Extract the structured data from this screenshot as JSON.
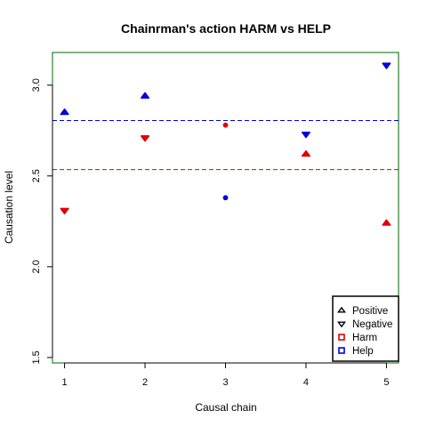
{
  "chart_data": {
    "type": "scatter",
    "title": "Chainrman's action HARM vs HELP",
    "xlabel": "Causal chain",
    "ylabel": "Causation level",
    "xlim": [
      0.85,
      5.15
    ],
    "ylim": [
      1.47,
      3.18
    ],
    "x_ticks": [
      "1",
      "2",
      "3",
      "4",
      "5"
    ],
    "y_ticks": [
      "1.5",
      "2.0",
      "2.5",
      "3.0"
    ],
    "frame_color": "#006400",
    "series": [
      {
        "name": "Harm",
        "color": "#e00000",
        "points": [
          {
            "x": 1,
            "y": 2.31,
            "shape": "down"
          },
          {
            "x": 2,
            "y": 2.71,
            "shape": "down"
          },
          {
            "x": 3,
            "y": 2.78,
            "shape": "small"
          },
          {
            "x": 4,
            "y": 2.62,
            "shape": "up"
          },
          {
            "x": 5,
            "y": 2.24,
            "shape": "up"
          }
        ],
        "mean": 2.535
      },
      {
        "name": "Help",
        "color": "#0000dd",
        "points": [
          {
            "x": 1,
            "y": 2.85,
            "shape": "up"
          },
          {
            "x": 2,
            "y": 2.94,
            "shape": "up"
          },
          {
            "x": 3,
            "y": 2.38,
            "shape": "small"
          },
          {
            "x": 4,
            "y": 2.73,
            "shape": "down"
          },
          {
            "x": 5,
            "y": 3.11,
            "shape": "down"
          }
        ],
        "mean": 2.805
      }
    ],
    "legend": {
      "position": "bottom-right",
      "entries": [
        {
          "label": "Positive",
          "symbol": "up",
          "color": "#000000"
        },
        {
          "label": "Negative",
          "symbol": "down",
          "color": "#000000"
        },
        {
          "label": "Harm",
          "symbol": "square",
          "color": "#e00000"
        },
        {
          "label": "Help",
          "symbol": "square",
          "color": "#0000dd"
        }
      ]
    }
  }
}
